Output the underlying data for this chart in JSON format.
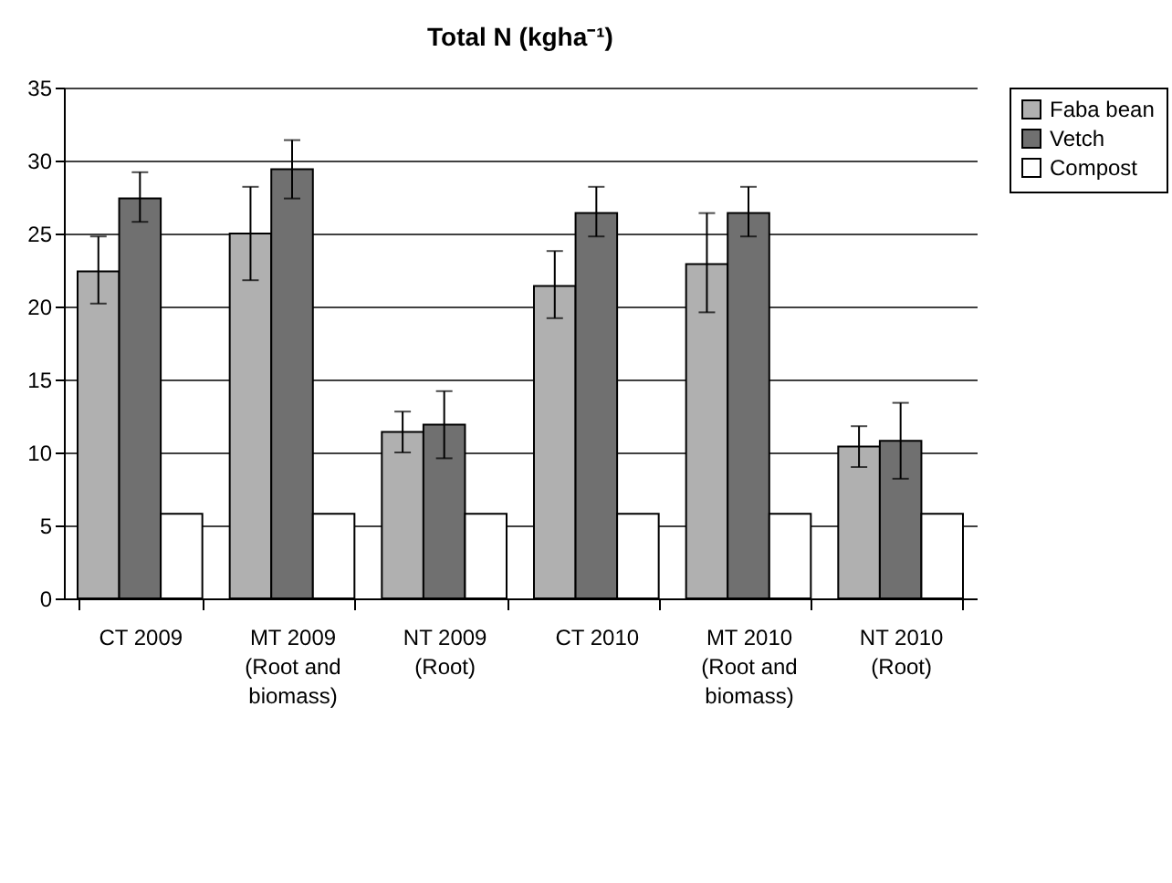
{
  "chart_data": {
    "type": "bar",
    "title": "Total N (kgha⁻¹)",
    "categories": [
      "CT 2009",
      "MT 2009 (Root and biomass)",
      "NT 2009 (Root)",
      "CT 2010",
      "MT 2010 (Root and biomass)",
      "NT 2010 (Root)"
    ],
    "series": [
      {
        "name": "Faba bean",
        "color": "#b0b0b0",
        "values": [
          22.4,
          25,
          11.4,
          21.4,
          22.9,
          10.4
        ],
        "errors": [
          [
            20.2,
            24.8
          ],
          [
            21.8,
            28.2
          ],
          [
            10,
            12.8
          ],
          [
            19.2,
            23.8
          ],
          [
            19.6,
            26.4
          ],
          [
            9,
            11.8
          ]
        ]
      },
      {
        "name": "Vetch",
        "color": "#707070",
        "values": [
          27.4,
          29.4,
          11.9,
          26.4,
          26.4,
          10.8
        ],
        "errors": [
          [
            25.8,
            29.2
          ],
          [
            27.4,
            31.4
          ],
          [
            9.6,
            14.2
          ],
          [
            24.8,
            28.2
          ],
          [
            24.8,
            28.2
          ],
          [
            8.2,
            13.4
          ]
        ]
      },
      {
        "name": "Compost",
        "color": "#ffffff",
        "values": [
          5.8,
          5.8,
          5.8,
          5.8,
          5.8,
          5.8
        ]
      }
    ],
    "ylim": [
      0,
      35
    ],
    "yticks": [
      0,
      5,
      10,
      15,
      20,
      25,
      30,
      35
    ],
    "grid": "y",
    "legend": "right"
  }
}
